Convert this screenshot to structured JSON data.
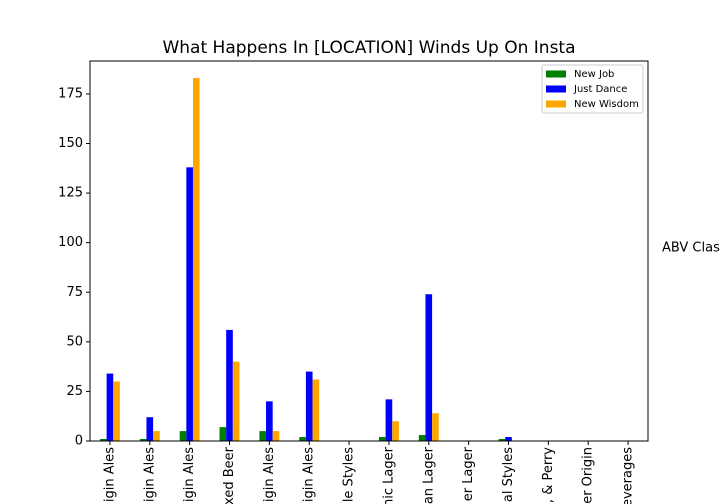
{
  "chart_data": {
    "type": "bar",
    "title": "What Happens In [LOCATION] Winds Up On Insta",
    "categories": [
      "igin Ales",
      "igin Ales",
      "igin Ales",
      "xed Beer",
      "igin Ales",
      "igin Ales",
      "le Styles",
      "nic Lager",
      "an Lager",
      "er Lager",
      "al Styles",
      ", & Perry",
      "er Origin",
      "everages"
    ],
    "series": [
      {
        "name": "New Job",
        "color": "#008000",
        "values": [
          1,
          1,
          5,
          7,
          5,
          2,
          0,
          2,
          3,
          0,
          1,
          0,
          0,
          0
        ]
      },
      {
        "name": "Just Dance",
        "color": "#0000ff",
        "values": [
          34,
          12,
          138,
          56,
          20,
          35,
          0,
          21,
          74,
          0,
          2,
          0,
          0,
          0
        ]
      },
      {
        "name": "New Wisdom",
        "color": "#ffa500",
        "values": [
          30,
          5,
          183,
          40,
          5,
          31,
          0,
          10,
          14,
          0,
          0,
          0,
          0,
          0
        ]
      }
    ],
    "legend_title": "ABV Class",
    "ylim": [
      0,
      191.6
    ],
    "yticks": [
      0,
      25,
      50,
      75,
      100,
      125,
      150,
      175
    ],
    "legend": "upper right",
    "grid": false
  }
}
